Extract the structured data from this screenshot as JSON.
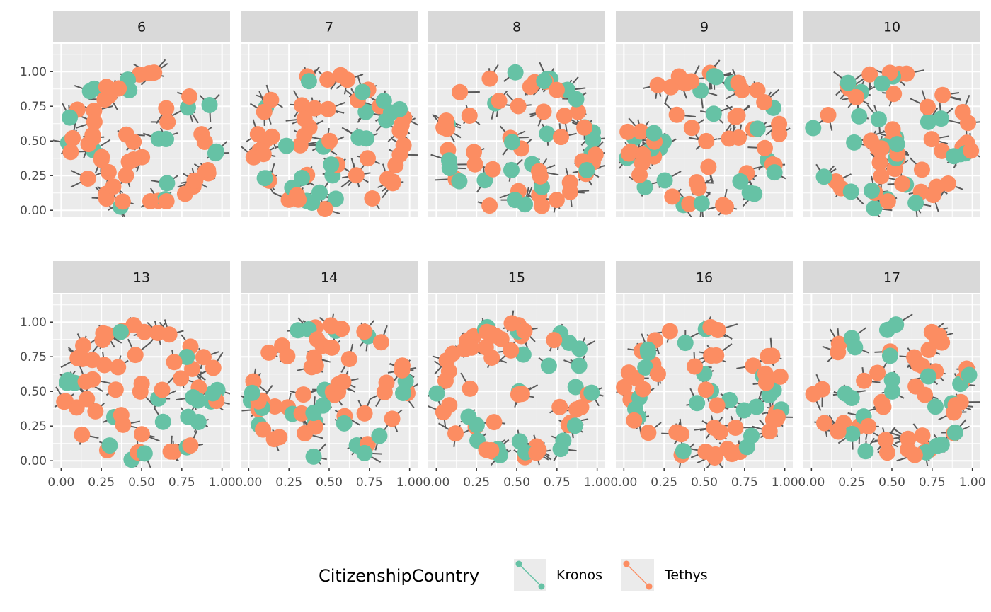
{
  "chart_data": {
    "type": "scatter",
    "facets": [
      "6",
      "7",
      "8",
      "9",
      "10",
      "13",
      "14",
      "15",
      "16",
      "17"
    ],
    "xlim": [
      -0.05,
      1.05
    ],
    "ylim": [
      -0.05,
      1.2
    ],
    "x_ticks": [
      "0.00",
      "0.25",
      "0.50",
      "0.75",
      "1.00"
    ],
    "x_tick_values": [
      0,
      0.25,
      0.5,
      0.75,
      1.0
    ],
    "y_ticks": [
      "0.00",
      "0.25",
      "0.50",
      "0.75",
      "1.00"
    ],
    "y_tick_values": [
      0,
      0.25,
      0.5,
      0.75,
      1.0
    ],
    "grid": true,
    "legend": {
      "position": "bottom",
      "title": "CitizenshipCountry",
      "entries": [
        {
          "label": "Kronos",
          "color": "#66c2a5"
        },
        {
          "label": "Tethys",
          "color": "#fc8d62"
        }
      ]
    },
    "node_counts_per_facet": [
      [
        16,
        44
      ],
      [
        22,
        43
      ],
      [
        24,
        38
      ],
      [
        22,
        41
      ],
      [
        24,
        39
      ],
      [
        19,
        44
      ],
      [
        20,
        44
      ],
      [
        23,
        41
      ],
      [
        21,
        43
      ],
      [
        21,
        42
      ]
    ],
    "edge_color": "#595959",
    "colors": {
      "panel_background": "#ebebeb",
      "strip_background": "#d9d9d9",
      "grid": "#ffffff",
      "Kronos": "#66c2a5",
      "Tethys": "#fc8d62"
    }
  }
}
